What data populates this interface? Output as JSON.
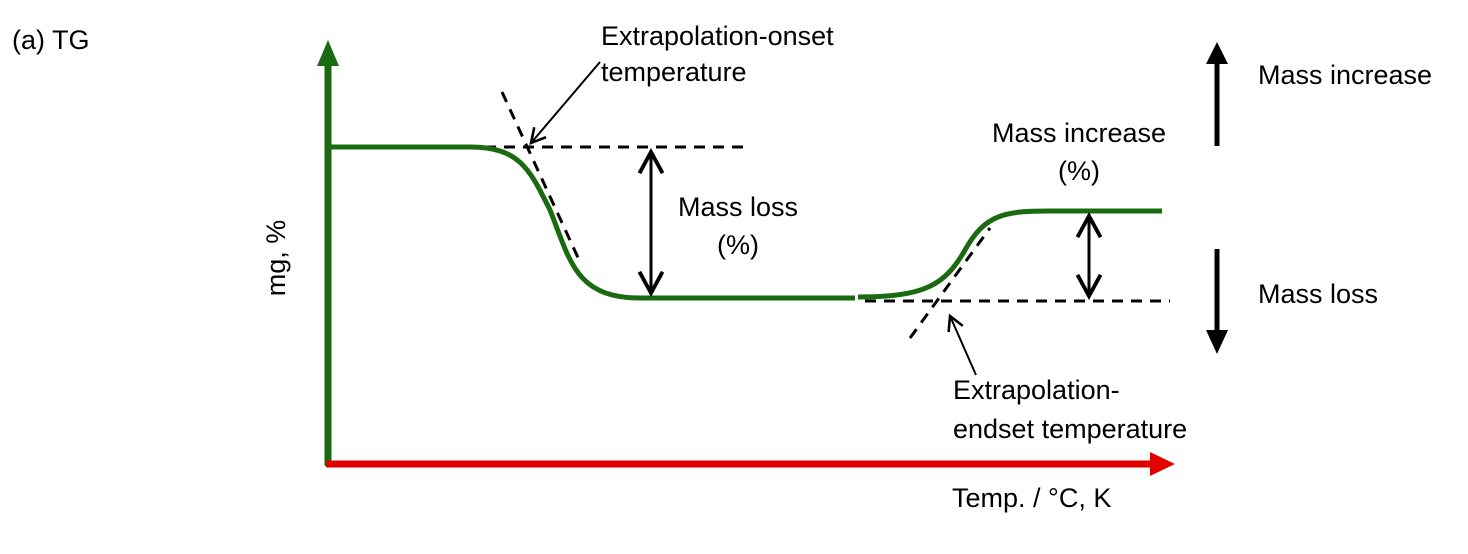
{
  "panel_label": "(a) TG",
  "y_axis_label": "mg, %",
  "x_axis_label": "Temp. / °C, K",
  "annotations": {
    "onset_line1": "Extrapolation-onset",
    "onset_line2": "temperature",
    "endset_line1": "Extrapolation-",
    "endset_line2": "endset temperature",
    "mass_loss_step_line1": "Mass loss",
    "mass_loss_step_line2": "(%)",
    "mass_increase_step_line1": "Mass increase",
    "mass_increase_step_line2": "(%)"
  },
  "legend": {
    "up_label": "Mass increase",
    "down_label": "Mass loss"
  },
  "colors": {
    "curve": "#1a6b10",
    "y_axis": "#1a6b10",
    "x_axis": "#e00000",
    "ink": "#000000"
  }
}
